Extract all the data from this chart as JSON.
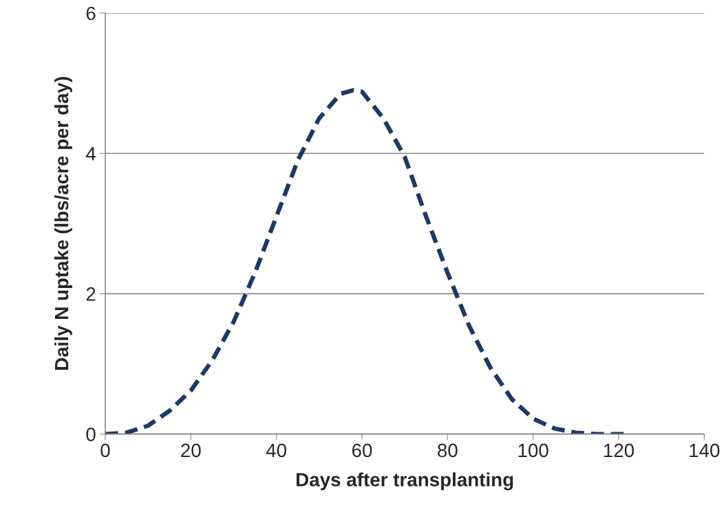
{
  "chart_data": {
    "type": "line",
    "xlabel": "Days after transplanting",
    "ylabel": "Daily N uptake (lbs/acre per day)",
    "x": [
      0,
      5,
      10,
      15,
      20,
      25,
      30,
      35,
      40,
      45,
      50,
      55,
      58,
      60,
      65,
      70,
      75,
      80,
      85,
      90,
      95,
      100,
      105,
      110,
      115,
      120,
      122
    ],
    "series": [
      {
        "color": "#1f3864",
        "values": [
          0,
          0.02,
          0.12,
          0.33,
          0.62,
          1.05,
          1.6,
          2.3,
          3.1,
          3.9,
          4.5,
          4.85,
          4.9,
          4.88,
          4.5,
          3.95,
          3.1,
          2.3,
          1.55,
          0.95,
          0.5,
          0.22,
          0.08,
          0.02,
          0,
          0,
          0
        ]
      }
    ],
    "xlim": [
      0,
      140
    ],
    "xticks": [
      0,
      20,
      40,
      60,
      80,
      100,
      120,
      140
    ],
    "ylim": [
      0,
      6
    ],
    "yticks": [
      0,
      2,
      4,
      6
    ],
    "grid": "y",
    "line_style": "dashed",
    "marker": "none",
    "legend": false
  }
}
